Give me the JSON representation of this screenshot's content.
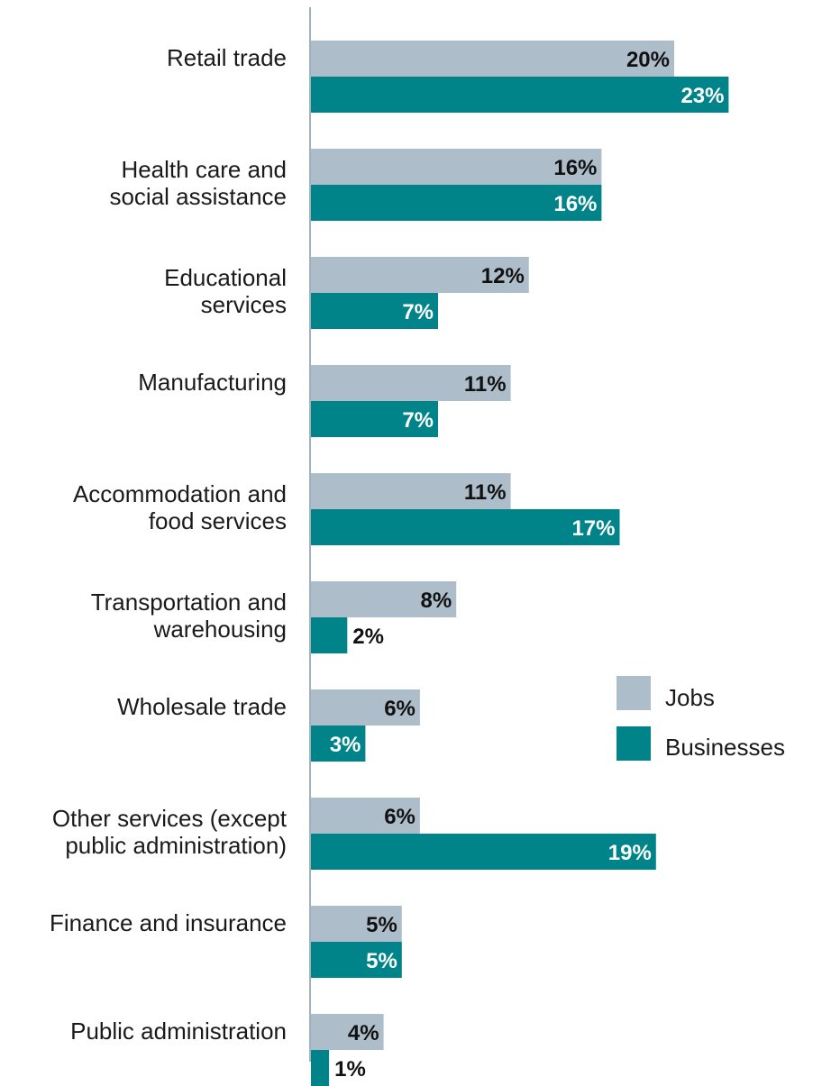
{
  "chart_data": {
    "type": "bar",
    "orientation": "horizontal",
    "categories": [
      [
        "Retail trade"
      ],
      [
        "Health care and",
        "social assistance"
      ],
      [
        "Educational",
        "services"
      ],
      [
        "Manufacturing"
      ],
      [
        "Accommodation and",
        "food services"
      ],
      [
        "Transportation and",
        "warehousing"
      ],
      [
        "Wholesale trade"
      ],
      [
        "Other services (except",
        "public administration)"
      ],
      [
        "Finance and insurance"
      ],
      [
        "Public administration"
      ]
    ],
    "series": [
      {
        "name": "Jobs",
        "color": "#aebdca",
        "values": [
          20,
          16,
          12,
          11,
          11,
          8,
          6,
          6,
          5,
          4
        ],
        "labels": [
          "20%",
          "16%",
          "12%",
          "11%",
          "11%",
          "8%",
          "6%",
          "6%",
          "5%",
          "4%"
        ]
      },
      {
        "name": "Businesses",
        "color": "#00848a",
        "values": [
          23,
          16,
          7,
          7,
          17,
          2,
          3,
          19,
          5,
          1
        ],
        "labels": [
          "23%",
          "16%",
          "7%",
          "7%",
          "17%",
          "2%",
          "3%",
          "19%",
          "5%",
          "1%"
        ]
      }
    ],
    "value_unit": "%",
    "grid": false,
    "legend_position": "right"
  },
  "legend": {
    "items": [
      {
        "label": "Jobs",
        "color": "#aebdca"
      },
      {
        "label": "Businesses",
        "color": "#00848a"
      }
    ]
  }
}
